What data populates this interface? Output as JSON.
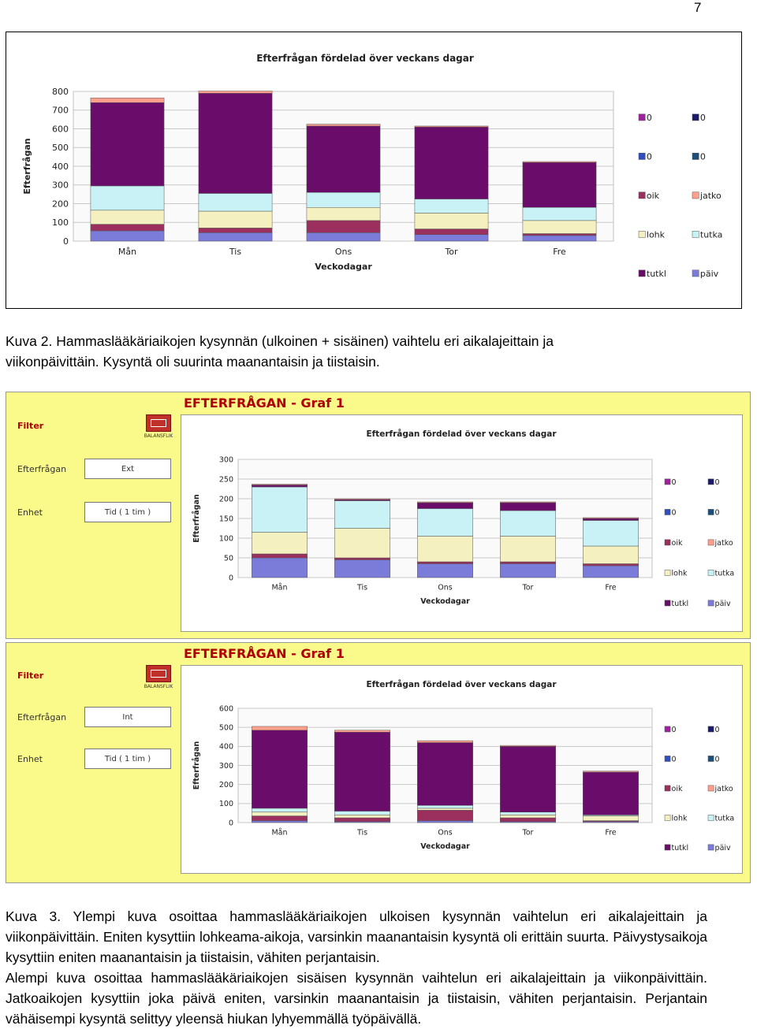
{
  "page_number": "7",
  "legend_entries": [
    "0",
    "0",
    "0",
    "0",
    "oik",
    "jatko",
    "lohk",
    "tutka",
    "tutkl",
    "päiv"
  ],
  "legend_entries_top": [
    "0",
    "0",
    "0",
    "0",
    "oik",
    "jatko",
    "lohk",
    "tutka",
    "tutkl",
    "päiv"
  ],
  "segment_colors": {
    "päiv": "#7b7bd9",
    "oik": "#9b2f5e",
    "lohk": "#f5f0c0",
    "tutka": "#c8f2f5",
    "tutkl": "#6a0d6a",
    "jatko": "#ff9f8c",
    "zero_a": "#a020a0",
    "zero_b": "#1b1b6a",
    "zero_c": "#3050c0",
    "zero_d": "#1b4f7a"
  },
  "chart_data": [
    {
      "type": "bar",
      "stacked": true,
      "title": "Efterfrågan fördelad över veckans dagar",
      "xlabel": "Veckodagar",
      "ylabel": "Efterfrågan",
      "ylim": [
        0,
        800
      ],
      "yticks": [
        "0",
        "100",
        "200",
        "300",
        "400",
        "500",
        "600",
        "700",
        "800"
      ],
      "categories": [
        "Mån",
        "Tis",
        "Ons",
        "Tor",
        "Fre"
      ],
      "series": [
        {
          "name": "päiv",
          "values": [
            55,
            45,
            45,
            35,
            30
          ]
        },
        {
          "name": "oik",
          "values": [
            35,
            25,
            65,
            30,
            10
          ]
        },
        {
          "name": "lohk",
          "values": [
            75,
            90,
            70,
            85,
            70
          ]
        },
        {
          "name": "tutka",
          "values": [
            130,
            95,
            80,
            75,
            70
          ]
        },
        {
          "name": "tutkl",
          "values": [
            445,
            535,
            355,
            385,
            240
          ]
        },
        {
          "name": "jatko",
          "values": [
            25,
            12,
            10,
            5,
            5
          ]
        }
      ],
      "grid": true,
      "legend_position": "right"
    },
    {
      "type": "bar",
      "stacked": true,
      "title": "Efterfrågan fördelad över veckans dagar",
      "xlabel": "Veckodagar",
      "ylabel": "Efterfrågan",
      "ylim": [
        0,
        300
      ],
      "yticks": [
        "0",
        "50",
        "100",
        "150",
        "200",
        "250",
        "300"
      ],
      "categories": [
        "Mån",
        "Tis",
        "Ons",
        "Tor",
        "Fre"
      ],
      "series": [
        {
          "name": "päiv",
          "values": [
            50,
            45,
            35,
            35,
            30
          ]
        },
        {
          "name": "oik",
          "values": [
            10,
            5,
            5,
            5,
            5
          ]
        },
        {
          "name": "lohk",
          "values": [
            55,
            75,
            65,
            65,
            45
          ]
        },
        {
          "name": "tutka",
          "values": [
            115,
            70,
            70,
            65,
            65
          ]
        },
        {
          "name": "tutkl",
          "values": [
            5,
            3,
            15,
            20,
            5
          ]
        },
        {
          "name": "jatko",
          "values": [
            2,
            2,
            2,
            2,
            2
          ]
        }
      ],
      "grid": true,
      "legend_position": "right"
    },
    {
      "type": "bar",
      "stacked": true,
      "title": "Efterfrågan fördelad över veckans dagar",
      "xlabel": "Veckodagar",
      "ylabel": "Efterfrågan",
      "ylim": [
        0,
        600
      ],
      "yticks": [
        "0",
        "100",
        "200",
        "300",
        "400",
        "500",
        "600"
      ],
      "categories": [
        "Mån",
        "Tis",
        "Ons",
        "Tor",
        "Fre"
      ],
      "series": [
        {
          "name": "päiv",
          "values": [
            10,
            5,
            10,
            5,
            5
          ]
        },
        {
          "name": "oik",
          "values": [
            25,
            20,
            55,
            20,
            5
          ]
        },
        {
          "name": "lohk",
          "values": [
            20,
            15,
            10,
            15,
            25
          ]
        },
        {
          "name": "tutka",
          "values": [
            20,
            20,
            15,
            15,
            5
          ]
        },
        {
          "name": "tutkl",
          "values": [
            410,
            415,
            330,
            345,
            225
          ]
        },
        {
          "name": "jatko",
          "values": [
            20,
            10,
            10,
            5,
            5
          ]
        }
      ],
      "grid": true,
      "legend_position": "right"
    }
  ],
  "caption_2": {
    "line1": "Kuva 2. Hammaslääkäriaikojen kysynnän (ulkoinen + sisäinen) vaihtelu eri aikalajeittain ja",
    "line2": "viikonpäivittäin. Kysyntä oli suurinta maanantaisin ja tiistaisin."
  },
  "panel_1": {
    "title": "EFTERFRÅGAN - Graf 1",
    "filter_label": "Filter",
    "logo_text": "BALANSFLIK",
    "efterfragan_label": "Efterfrågan",
    "efterfragan_value": "Ext",
    "enhet_label": "Enhet",
    "enhet_value": "Tid ( 1 tim )"
  },
  "panel_2": {
    "title": "EFTERFRÅGAN - Graf 1",
    "filter_label": "Filter",
    "logo_text": "BALANSFLIK",
    "efterfragan_label": "Efterfrågan",
    "efterfragan_value": "Int",
    "enhet_label": "Enhet",
    "enhet_value": "Tid ( 1 tim )"
  },
  "caption_3": {
    "p1": "Kuva 3.  Ylempi kuva osoittaa hammaslääkäriaikojen ulkoisen kysynnän vaihtelun eri aikalajeittain ja viikonpäivittäin. Eniten kysyttiin lohkeama-aikoja, varsinkin maanantaisin kysyntä oli erittäin suurta. Päivystysaikoja kysyttiin eniten maanantaisin ja tiistaisin, vähiten perjantaisin.",
    "p2": "Alempi kuva osoittaa hammaslääkäriaikojen sisäisen kysynnän vaihtelun eri aikalajeittain ja viikonpäivittäin. Jatkoaikojen kysyttiin joka päivä eniten, varsinkin maanantaisin ja tiistaisin, vähiten perjantaisin. Perjantain vähäisempi kysyntä selittyy yleensä hiukan lyhyemmällä työpäivällä."
  }
}
